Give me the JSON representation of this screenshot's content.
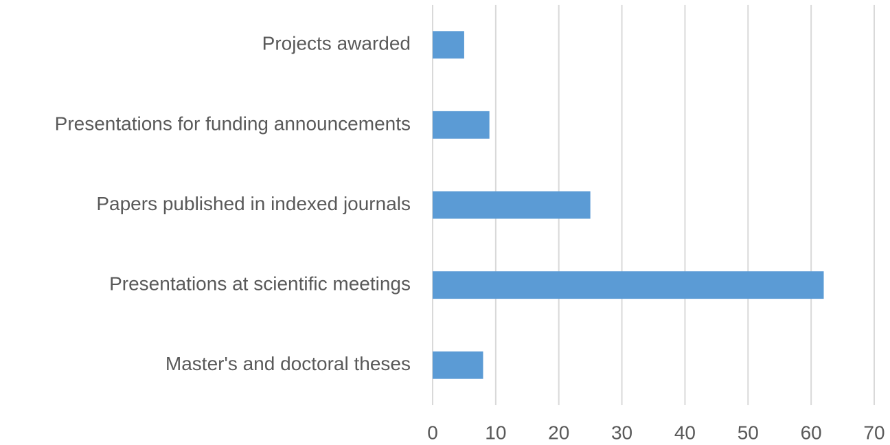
{
  "chart_data": {
    "type": "hbar",
    "categories": [
      "Projects awarded",
      "Presentations for funding announcements",
      "Papers published in indexed journals",
      "Presentations at scientific meetings",
      "Master's and doctoral theses"
    ],
    "values": [
      5,
      9,
      25,
      62,
      8
    ],
    "color": "#5b9bd5",
    "xlim": [
      0,
      70
    ],
    "xticks": [
      0,
      10,
      20,
      30,
      40,
      50,
      60,
      70
    ],
    "grid": true
  }
}
